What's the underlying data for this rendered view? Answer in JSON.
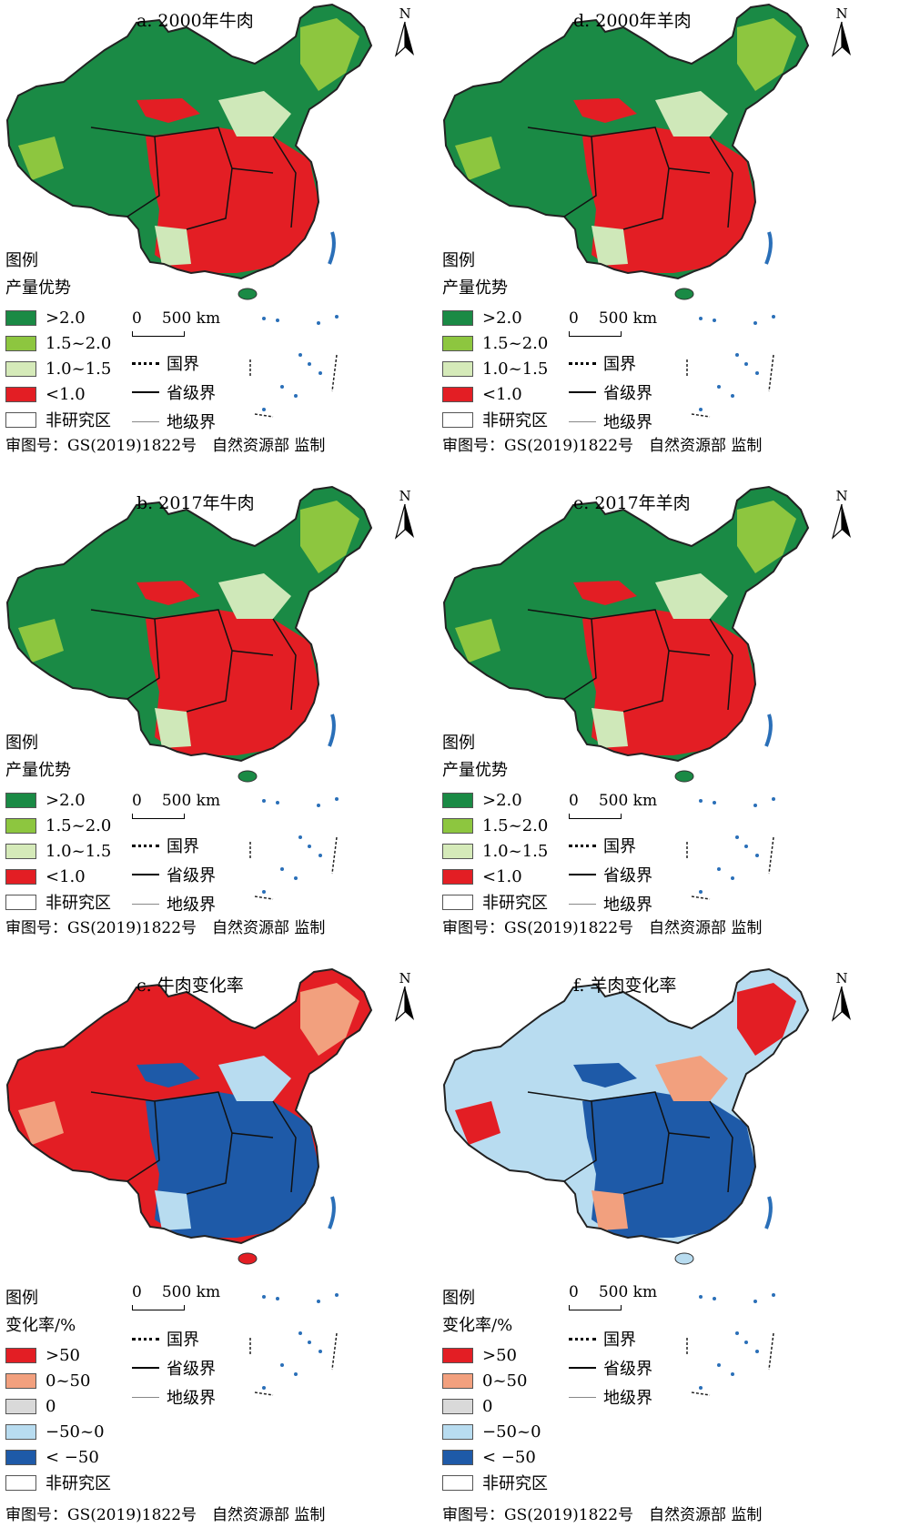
{
  "panels": [
    {
      "id": "a",
      "title": "a. 2000年牛肉",
      "legend_type": "advantage",
      "colors": {
        "base": "#1a8a45",
        "light": "#cfe8b9",
        "mid": "#8dc63f",
        "red": "#e31e24"
      }
    },
    {
      "id": "d",
      "title": "d. 2000年羊肉",
      "legend_type": "advantage",
      "colors": {
        "base": "#1a8a45",
        "light": "#cfe8b9",
        "mid": "#8dc63f",
        "red": "#e31e24"
      }
    },
    {
      "id": "b",
      "title": "b. 2017年牛肉",
      "legend_type": "advantage",
      "colors": {
        "base": "#1a8a45",
        "light": "#cfe8b9",
        "mid": "#8dc63f",
        "red": "#e31e24"
      }
    },
    {
      "id": "e",
      "title": "e. 2017年羊肉",
      "legend_type": "advantage",
      "colors": {
        "base": "#1a8a45",
        "light": "#cfe8b9",
        "mid": "#8dc63f",
        "red": "#e31e24"
      }
    },
    {
      "id": "c",
      "title": "c. 牛肉变化率",
      "legend_type": "change",
      "colors": {
        "base": "#e31e24",
        "light": "#b8dcf0",
        "mid": "#f2a07e",
        "red": "#1e5aa8"
      }
    },
    {
      "id": "f",
      "title": "f. 羊肉变化率",
      "legend_type": "change",
      "colors": {
        "base": "#b8dcf0",
        "light": "#f2a07e",
        "mid": "#e31e24",
        "red": "#1e5aa8"
      }
    }
  ],
  "legend": {
    "title": "图例",
    "advantage": {
      "heading": "产量优势",
      "items": [
        {
          "label": ">2.0",
          "color": "#1a8a45"
        },
        {
          "label": "1.5~2.0",
          "color": "#8dc63f"
        },
        {
          "label": "1.0~1.5",
          "color": "#d5eab9"
        },
        {
          "label": "<1.0",
          "color": "#e31e24"
        },
        {
          "label": "非研究区",
          "color": "#ffffff"
        }
      ]
    },
    "change": {
      "heading": "变化率/%",
      "items": [
        {
          "label": ">50",
          "color": "#e31e24"
        },
        {
          "label": "0~50",
          "color": "#f2a07e"
        },
        {
          "label": "0",
          "color": "#d9d9d9"
        },
        {
          "label": "−50~0",
          "color": "#b8dcf0"
        },
        {
          "label": "< −50",
          "color": "#1e5aa8"
        },
        {
          "label": "非研究区",
          "color": "#ffffff"
        }
      ]
    }
  },
  "scale": {
    "zero": "0",
    "distance": "500 km"
  },
  "boundaries": {
    "national": "国界",
    "provincial": "省级界",
    "prefectural": "地级界"
  },
  "north_label": "N",
  "footer": "审图号：GS(2019)1822号　自然资源部 监制"
}
